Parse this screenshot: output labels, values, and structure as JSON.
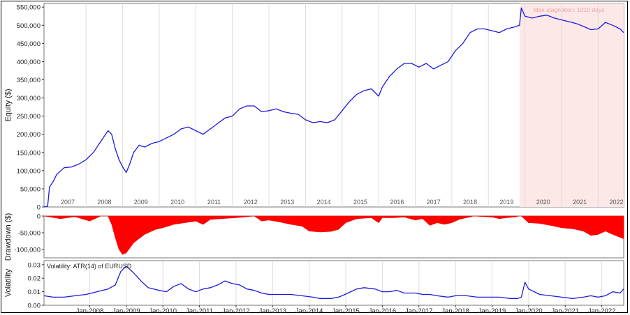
{
  "chart_data": [
    {
      "type": "line",
      "ylabel": "Equity ($)",
      "ylim": [
        0,
        560000
      ],
      "y_ticks": [
        "0",
        "50,000",
        "100,000",
        "150,000",
        "200,000",
        "250,000",
        "300,000",
        "350,000",
        "400,000",
        "450,000",
        "500,000",
        "550,000"
      ],
      "year_labels": [
        "2007",
        "2008",
        "2009",
        "2010",
        "2011",
        "2012",
        "2013",
        "2014",
        "2015",
        "2016",
        "2017",
        "2018",
        "2019",
        "2020",
        "2021",
        "2022"
      ],
      "stagnation_label": "Max stagnation: 1010 days",
      "stagnation_range": [
        2019.75,
        2022.6
      ],
      "color": "#1a1adf",
      "grid": "vertical",
      "series": [
        {
          "x": [
            2006.75,
            2006.85,
            2006.9,
            2007.0,
            2007.1,
            2007.3,
            2007.5,
            2007.7,
            2007.9,
            2008.1,
            2008.3,
            2008.5,
            2008.6,
            2008.7,
            2008.8,
            2008.9,
            2009.0,
            2009.1,
            2009.2,
            2009.35,
            2009.5,
            2009.7,
            2009.9,
            2010.1,
            2010.3,
            2010.5,
            2010.7,
            2010.9,
            2011.1,
            2011.3,
            2011.5,
            2011.7,
            2011.9,
            2012.1,
            2012.3,
            2012.5,
            2012.7,
            2012.9,
            2013.1,
            2013.3,
            2013.5,
            2013.7,
            2013.9,
            2014.1,
            2014.3,
            2014.5,
            2014.7,
            2014.9,
            2015.1,
            2015.3,
            2015.5,
            2015.7,
            2015.9,
            2016.0,
            2016.2,
            2016.4,
            2016.6,
            2016.8,
            2017.0,
            2017.2,
            2017.4,
            2017.6,
            2017.8,
            2018.0,
            2018.2,
            2018.4,
            2018.6,
            2018.8,
            2019.0,
            2019.2,
            2019.4,
            2019.6,
            2019.75,
            2019.8,
            2019.9,
            2020.1,
            2020.3,
            2020.5,
            2020.7,
            2020.9,
            2021.1,
            2021.3,
            2021.5,
            2021.7,
            2021.9,
            2022.1,
            2022.3,
            2022.5,
            2022.6
          ],
          "y": [
            0,
            2000,
            55000,
            70000,
            90000,
            108000,
            110000,
            118000,
            130000,
            150000,
            180000,
            210000,
            200000,
            160000,
            130000,
            110000,
            95000,
            120000,
            150000,
            170000,
            165000,
            175000,
            180000,
            190000,
            200000,
            215000,
            220000,
            210000,
            200000,
            215000,
            230000,
            245000,
            250000,
            270000,
            278000,
            278000,
            262000,
            265000,
            270000,
            262000,
            258000,
            255000,
            240000,
            232000,
            235000,
            232000,
            240000,
            265000,
            290000,
            310000,
            320000,
            325000,
            305000,
            330000,
            360000,
            380000,
            395000,
            395000,
            385000,
            395000,
            380000,
            390000,
            400000,
            430000,
            450000,
            480000,
            490000,
            490000,
            485000,
            480000,
            490000,
            495000,
            500000,
            548000,
            525000,
            520000,
            525000,
            528000,
            520000,
            515000,
            510000,
            505000,
            497000,
            488000,
            490000,
            508000,
            500000,
            490000,
            480000
          ]
        }
      ]
    },
    {
      "type": "area",
      "ylabel": "Drawdown ($)",
      "ylim": [
        -125000,
        0
      ],
      "y_ticks": [
        "0",
        "-50,000",
        "-100,000"
      ],
      "color": "#ff0000",
      "series": [
        {
          "x": [
            2006.75,
            2007.2,
            2007.6,
            2008.0,
            2008.3,
            2008.5,
            2008.6,
            2008.7,
            2008.8,
            2008.9,
            2009.0,
            2009.2,
            2009.5,
            2009.8,
            2010.0,
            2010.3,
            2010.6,
            2010.9,
            2011.1,
            2011.3,
            2011.6,
            2012.0,
            2012.3,
            2012.5,
            2012.7,
            2012.9,
            2013.2,
            2013.5,
            2013.8,
            2014.0,
            2014.3,
            2014.6,
            2014.8,
            2015.0,
            2015.3,
            2015.7,
            2015.9,
            2016.0,
            2016.3,
            2016.6,
            2016.9,
            2017.1,
            2017.3,
            2017.5,
            2017.7,
            2017.9,
            2018.1,
            2018.3,
            2018.5,
            2018.8,
            2019.0,
            2019.2,
            2019.4,
            2019.6,
            2019.75,
            2019.8,
            2020.0,
            2020.3,
            2020.6,
            2020.9,
            2021.2,
            2021.5,
            2021.7,
            2021.9,
            2022.1,
            2022.3,
            2022.6
          ],
          "y": [
            0,
            -8000,
            -2000,
            -15000,
            0,
            0,
            -25000,
            -65000,
            -100000,
            -115000,
            -110000,
            -80000,
            -55000,
            -40000,
            -35000,
            -25000,
            -20000,
            -15000,
            -25000,
            -10000,
            -8000,
            -5000,
            -2000,
            0,
            -15000,
            -12000,
            -18000,
            -25000,
            -30000,
            -45000,
            -48000,
            -46000,
            -40000,
            -20000,
            -8000,
            -5000,
            -20000,
            -5000,
            -5000,
            -3000,
            -12000,
            -8000,
            -28000,
            -20000,
            -25000,
            -20000,
            -10000,
            -5000,
            0,
            -2000,
            -3000,
            -8000,
            -5000,
            -3000,
            0,
            0,
            -20000,
            -22000,
            -28000,
            -35000,
            -38000,
            -45000,
            -58000,
            -55000,
            -45000,
            -55000,
            -68000
          ]
        }
      ]
    },
    {
      "type": "line",
      "ylabel": "Volatility",
      "legend": "Volatility: ATR(14) of EURUSD",
      "ylim": [
        0,
        0.033
      ],
      "y_ticks": [
        "0.00",
        "0.01",
        "0.02",
        "0.03"
      ],
      "x_labels": [
        "Jan-2008",
        "Jan-2009",
        "Jan-2010",
        "Jan-2011",
        "Jan-2012",
        "Jan-2013",
        "Jan-2014",
        "Jan-2015",
        "Jan-2016",
        "Jan-2017",
        "Jan-2018",
        "Jan-2019",
        "Jan-2020",
        "Jan-2021",
        "Jan-2022"
      ],
      "color": "#1a1adf",
      "series": [
        {
          "x": [
            2006.75,
            2007.0,
            2007.3,
            2007.6,
            2007.9,
            2008.2,
            2008.5,
            2008.7,
            2008.85,
            2009.0,
            2009.2,
            2009.4,
            2009.6,
            2009.9,
            2010.1,
            2010.3,
            2010.5,
            2010.7,
            2010.9,
            2011.1,
            2011.3,
            2011.5,
            2011.7,
            2011.9,
            2012.1,
            2012.3,
            2012.5,
            2012.7,
            2012.9,
            2013.2,
            2013.5,
            2013.8,
            2014.1,
            2014.3,
            2014.6,
            2014.8,
            2014.9,
            2015.3,
            2015.5,
            2015.8,
            2016.0,
            2016.2,
            2016.4,
            2016.6,
            2016.9,
            2017.1,
            2017.3,
            2017.5,
            2017.8,
            2018.0,
            2018.3,
            2018.6,
            2018.9,
            2019.2,
            2019.5,
            2019.7,
            2019.8,
            2019.9,
            2020.0,
            2020.3,
            2020.6,
            2020.9,
            2021.2,
            2021.5,
            2021.7,
            2021.9,
            2022.1,
            2022.3,
            2022.5,
            2022.6
          ],
          "y": [
            0.007,
            0.006,
            0.006,
            0.007,
            0.008,
            0.01,
            0.012,
            0.015,
            0.025,
            0.029,
            0.024,
            0.018,
            0.013,
            0.011,
            0.01,
            0.014,
            0.016,
            0.012,
            0.01,
            0.012,
            0.013,
            0.015,
            0.018,
            0.016,
            0.015,
            0.012,
            0.011,
            0.009,
            0.008,
            0.008,
            0.008,
            0.007,
            0.006,
            0.005,
            0.005,
            0.006,
            0.007,
            0.012,
            0.013,
            0.012,
            0.01,
            0.01,
            0.011,
            0.009,
            0.009,
            0.008,
            0.008,
            0.007,
            0.006,
            0.007,
            0.007,
            0.006,
            0.006,
            0.006,
            0.005,
            0.005,
            0.006,
            0.017,
            0.012,
            0.008,
            0.007,
            0.006,
            0.005,
            0.006,
            0.007,
            0.006,
            0.007,
            0.01,
            0.009,
            0.012
          ]
        }
      ]
    }
  ]
}
